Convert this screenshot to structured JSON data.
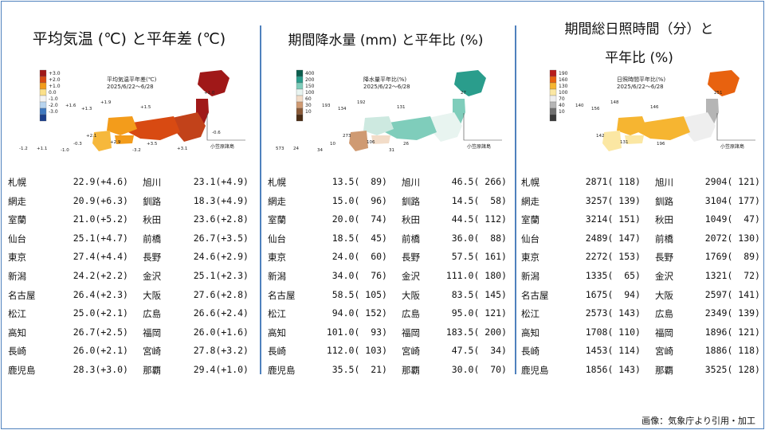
{
  "panels": [
    {
      "title_lines": [
        "平均気温 (℃) と平年差 (℃)"
      ],
      "map": {
        "caption": "平均気温平年差(℃)",
        "date": "2025/6/22～6/28",
        "legend": [
          {
            "label": "+3.0",
            "color": "#a01818"
          },
          {
            "label": "+2.0",
            "color": "#d84a12"
          },
          {
            "label": "+1.0",
            "color": "#f39c1b"
          },
          {
            "label": "0.0",
            "color": "#fbe08a"
          },
          {
            "label": "-1.0",
            "color": "#f4f4f4"
          },
          {
            "label": "-2.0",
            "color": "#b8d4ee"
          },
          {
            "label": "-3.0",
            "color": "#3f78bf"
          },
          {
            "label": "",
            "color": "#1c3f8c"
          }
        ],
        "inset_label": "小笠原諸島",
        "value_labels": [
          "+1.6",
          "+1.9",
          "+1.3",
          "+1.5",
          "+2.1",
          "+2.9",
          "+3.5",
          "+1.0",
          "+1.1",
          "-1.0",
          "-1.2",
          "-0.3",
          "-3.2",
          "-0.6",
          "+3.1"
        ]
      },
      "rows": [
        {
          "left_city": "札幌",
          "left_val": "22.9(+4.6)",
          "right_city": "旭川",
          "right_val": "23.1(+4.9)"
        },
        {
          "left_city": "網走",
          "left_val": "20.9(+6.3)",
          "right_city": "釧路",
          "right_val": "18.3(+4.9)"
        },
        {
          "left_city": "室蘭",
          "left_val": "21.0(+5.2)",
          "right_city": "秋田",
          "right_val": "23.6(+2.8)"
        },
        {
          "left_city": "仙台",
          "left_val": "25.1(+4.7)",
          "right_city": "前橋",
          "right_val": "26.7(+3.5)"
        },
        {
          "left_city": "東京",
          "left_val": "27.4(+4.4)",
          "right_city": "長野",
          "right_val": "24.6(+2.9)"
        },
        {
          "left_city": "新潟",
          "left_val": "24.2(+2.2)",
          "right_city": "金沢",
          "right_val": "25.1(+2.3)"
        },
        {
          "left_city": "名古屋",
          "left_val": "26.4(+2.3)",
          "right_city": "大阪",
          "right_val": "27.6(+2.8)"
        },
        {
          "left_city": "松江",
          "left_val": "25.0(+2.1)",
          "right_city": "広島",
          "right_val": "26.6(+2.4)"
        },
        {
          "left_city": "高知",
          "left_val": "26.7(+2.5)",
          "right_city": "福岡",
          "right_val": "26.0(+1.6)"
        },
        {
          "left_city": "長崎",
          "left_val": "26.0(+2.1)",
          "right_city": "宮崎",
          "right_val": "27.8(+3.2)"
        },
        {
          "left_city": "鹿児島",
          "left_val": "28.3(+3.0)",
          "right_city": "那覇",
          "right_val": "29.4(+1.0)"
        }
      ]
    },
    {
      "title_lines": [
        "期間降水量 (mm) と平年比 (%)"
      ],
      "map": {
        "caption": "降水量平年比(%)",
        "date": "2025/6/22～6/28",
        "legend": [
          {
            "label": "400",
            "color": "#0b5e4e"
          },
          {
            "label": "200",
            "color": "#2a9d8c"
          },
          {
            "label": "150",
            "color": "#7fcdbb"
          },
          {
            "label": "100",
            "color": "#e8f4f0"
          },
          {
            "label": "60",
            "color": "#f2dcc8"
          },
          {
            "label": "30",
            "color": "#cf9a72"
          },
          {
            "label": "10",
            "color": "#8b5a38"
          },
          {
            "label": "",
            "color": "#4a2c14"
          }
        ],
        "inset_label": "小笠原諸島",
        "value_labels": [
          "193",
          "192",
          "134",
          "131",
          "273",
          "106",
          "26",
          "27",
          "24",
          "34",
          "573",
          "10",
          "31"
        ]
      },
      "rows": [
        {
          "left_city": "札幌",
          "left_val": "13.5(  89)",
          "right_city": "旭川",
          "right_val": "46.5( 266)"
        },
        {
          "left_city": "網走",
          "left_val": "15.0(  96)",
          "right_city": "釧路",
          "right_val": "14.5(  58)"
        },
        {
          "left_city": "室蘭",
          "left_val": "20.0(  74)",
          "right_city": "秋田",
          "right_val": "44.5( 112)"
        },
        {
          "left_city": "仙台",
          "left_val": "18.5(  45)",
          "right_city": "前橋",
          "right_val": "36.0(  88)"
        },
        {
          "left_city": "東京",
          "left_val": "24.0(  60)",
          "right_city": "長野",
          "right_val": "57.5( 161)"
        },
        {
          "left_city": "新潟",
          "left_val": "34.0(  76)",
          "right_city": "金沢",
          "right_val": "111.0( 180)"
        },
        {
          "left_city": "名古屋",
          "left_val": "58.5( 105)",
          "right_city": "大阪",
          "right_val": "83.5( 145)"
        },
        {
          "left_city": "松江",
          "left_val": "94.0( 152)",
          "right_city": "広島",
          "right_val": "95.0( 121)"
        },
        {
          "left_city": "高知",
          "left_val": "101.0(  93)",
          "right_city": "福岡",
          "right_val": "183.5( 200)"
        },
        {
          "left_city": "長崎",
          "left_val": "112.0( 103)",
          "right_city": "宮崎",
          "right_val": "47.5(  34)"
        },
        {
          "left_city": "鹿児島",
          "left_val": "35.5(  21)",
          "right_city": "那覇",
          "right_val": "30.0(  70)"
        }
      ]
    },
    {
      "title_lines": [
        "期間総日照時間（分）と",
        "平年比 (%)"
      ],
      "map": {
        "caption": "日照時間平年比(%)",
        "date": "2025/6/22～6/28",
        "legend": [
          {
            "label": "190",
            "color": "#b71c1c"
          },
          {
            "label": "160",
            "color": "#e8620f"
          },
          {
            "label": "130",
            "color": "#f6b531"
          },
          {
            "label": "100",
            "color": "#fbe7a3"
          },
          {
            "label": "70",
            "color": "#eeeeee"
          },
          {
            "label": "40",
            "color": "#b5b5b5"
          },
          {
            "label": "10",
            "color": "#707070"
          },
          {
            "label": "",
            "color": "#3a3a3a"
          }
        ],
        "inset_label": "小笠原諸島",
        "value_labels": [
          "140",
          "148",
          "156",
          "146",
          "142",
          "131",
          "196",
          "251"
        ]
      },
      "rows": [
        {
          "left_city": "札幌",
          "left_val": "2871( 118)",
          "right_city": "旭川",
          "right_val": "2904( 121)"
        },
        {
          "left_city": "網走",
          "left_val": "3257( 139)",
          "right_city": "釧路",
          "right_val": "3104( 177)"
        },
        {
          "left_city": "室蘭",
          "left_val": "3214( 151)",
          "right_city": "秋田",
          "right_val": "1049(  47)"
        },
        {
          "left_city": "仙台",
          "left_val": "2489( 147)",
          "right_city": "前橋",
          "right_val": "2072( 130)"
        },
        {
          "left_city": "東京",
          "left_val": "2272( 153)",
          "right_city": "長野",
          "right_val": "1769(  89)"
        },
        {
          "left_city": "新潟",
          "left_val": "1335(  65)",
          "right_city": "金沢",
          "right_val": "1321(  72)"
        },
        {
          "left_city": "名古屋",
          "left_val": "1675(  94)",
          "right_city": "大阪",
          "right_val": "2597( 141)"
        },
        {
          "left_city": "松江",
          "left_val": "2573( 143)",
          "right_city": "広島",
          "right_val": "2349( 139)"
        },
        {
          "left_city": "高知",
          "left_val": "1708( 110)",
          "right_city": "福岡",
          "right_val": "1896( 121)"
        },
        {
          "left_city": "長崎",
          "left_val": "1453( 114)",
          "right_city": "宮崎",
          "right_val": "1886( 118)"
        },
        {
          "left_city": "鹿児島",
          "left_val": "1856( 143)",
          "right_city": "那覇",
          "right_val": "3525( 128)"
        }
      ]
    }
  ],
  "source": "画像：気象庁より引用・加工"
}
